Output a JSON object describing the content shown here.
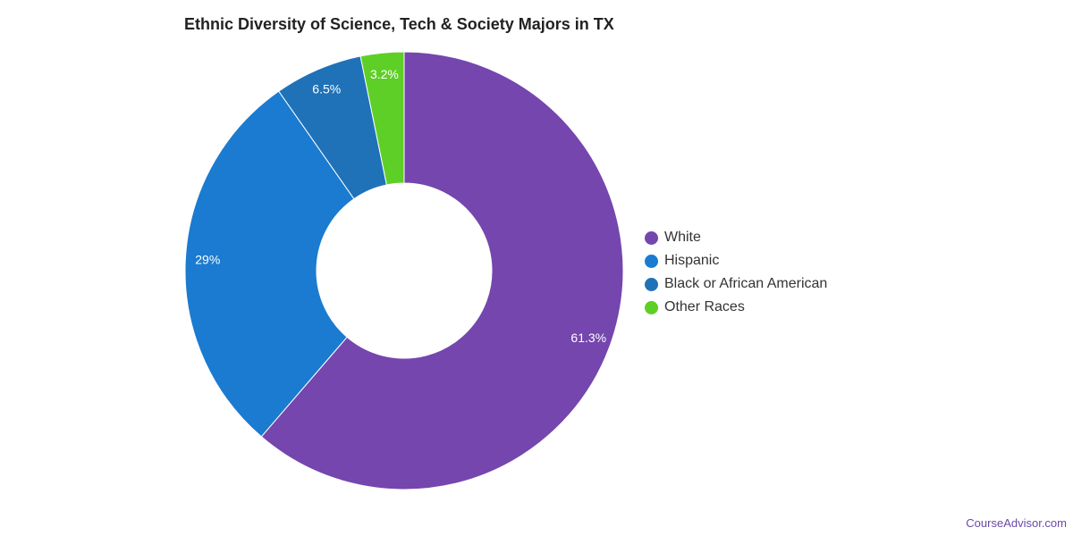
{
  "chart_data": {
    "type": "pie",
    "title": "Ethnic Diversity of Science, Tech & Society Majors in TX",
    "donut": true,
    "slices": [
      {
        "name": "White",
        "value": 61.3,
        "label": "61.3%",
        "color": "#7446ae"
      },
      {
        "name": "Hispanic",
        "value": 29.0,
        "label": "29%",
        "color": "#1a7bd1"
      },
      {
        "name": "Black or African American",
        "value": 6.5,
        "label": "6.5%",
        "color": "#1f72b8"
      },
      {
        "name": "Other Races",
        "value": 3.2,
        "label": "3.2%",
        "color": "#5ecf26"
      }
    ],
    "legend_position": "right"
  },
  "footer": {
    "source": "CourseAdvisor.com"
  }
}
